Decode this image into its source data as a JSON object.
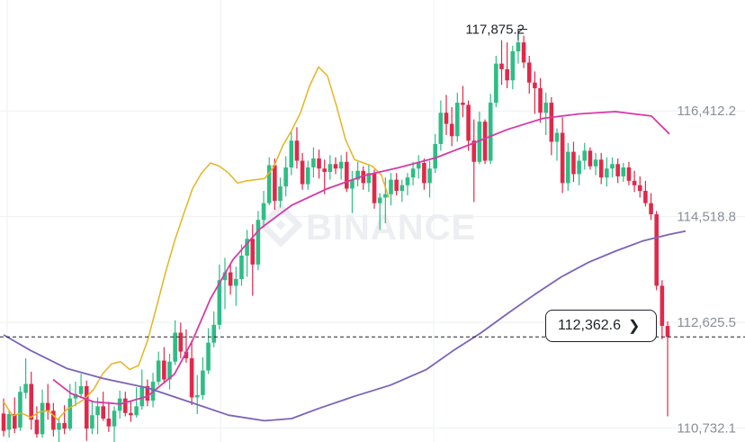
{
  "chart_data": {
    "type": "candlestick",
    "watermark": "BINANCE",
    "y_axis_labels": [
      "116,412.2",
      "114,518.8",
      "112,625.5",
      "110,732.1"
    ],
    "y_axis_values": [
      116412.2,
      114518.8,
      112625.5,
      110732.1
    ],
    "ylim": [
      110480,
      118400
    ],
    "grid": true,
    "high_marker": {
      "label": "117,875.2",
      "value": 117875.2
    },
    "current_price": {
      "label": "112,362.6",
      "value": 112362.6
    },
    "colors": {
      "up": "#2ebd85",
      "down": "#e0294a",
      "ma_short": "#e6b422",
      "ma_mid": "#d63aa6",
      "ma_long": "#7b63b8"
    },
    "candles": [
      [
        110990,
        111260,
        110580,
        110680
      ],
      [
        110700,
        111060,
        110560,
        110980
      ],
      [
        110980,
        111280,
        110640,
        110720
      ],
      [
        110740,
        111480,
        110680,
        111380
      ],
      [
        111360,
        111980,
        111260,
        111520
      ],
      [
        111520,
        111740,
        110700,
        110880
      ],
      [
        110880,
        111120,
        110560,
        110620
      ],
      [
        110620,
        111420,
        110560,
        111180
      ],
      [
        111180,
        111520,
        110880,
        111040
      ],
      [
        111040,
        111180,
        110580,
        110700
      ],
      [
        110700,
        110920,
        110420,
        110820
      ],
      [
        110820,
        111140,
        110620,
        110720
      ],
      [
        110720,
        111520,
        110680,
        111260
      ],
      [
        111260,
        111560,
        111120,
        111340
      ],
      [
        111340,
        111700,
        111260,
        111480
      ],
      [
        111480,
        111580,
        110500,
        110720
      ],
      [
        110720,
        111220,
        110620,
        110960
      ],
      [
        110960,
        111280,
        110620,
        111120
      ],
      [
        111120,
        111380,
        110860,
        110900
      ],
      [
        110900,
        111200,
        110660,
        110760
      ],
      [
        110760,
        111120,
        110480,
        111040
      ],
      [
        111040,
        111400,
        110900,
        111260
      ],
      [
        111260,
        111380,
        110940,
        111000
      ],
      [
        111000,
        111220,
        110840,
        110960
      ],
      [
        110960,
        111460,
        110920,
        111120
      ],
      [
        111120,
        111780,
        111060,
        111480
      ],
      [
        111480,
        111600,
        111120,
        111220
      ],
      [
        111220,
        111720,
        111100,
        111560
      ],
      [
        111560,
        112100,
        111500,
        111940
      ],
      [
        111940,
        112180,
        111520,
        111600
      ],
      [
        111600,
        112060,
        111420,
        111920
      ],
      [
        111920,
        112660,
        111860,
        112440
      ],
      [
        112440,
        112620,
        111980,
        112100
      ],
      [
        112100,
        112500,
        111900,
        111980
      ],
      [
        111980,
        112300,
        111140,
        111280
      ],
      [
        111280,
        111680,
        110980,
        111320
      ],
      [
        111320,
        112000,
        111240,
        111760
      ],
      [
        111760,
        112520,
        111700,
        112260
      ],
      [
        112260,
        112820,
        112180,
        112580
      ],
      [
        112580,
        113660,
        112500,
        113380
      ],
      [
        113380,
        113780,
        112860,
        113520
      ],
      [
        113520,
        113660,
        113120,
        113280
      ],
      [
        113280,
        113620,
        112920,
        113400
      ],
      [
        113400,
        114020,
        113280,
        113820
      ],
      [
        113820,
        114280,
        113440,
        114120
      ],
      [
        114120,
        114380,
        113100,
        113660
      ],
      [
        113660,
        114620,
        113560,
        114460
      ],
      [
        114460,
        114980,
        114320,
        114760
      ],
      [
        114760,
        115580,
        114720,
        115440
      ],
      [
        115440,
        115560,
        114640,
        114800
      ],
      [
        114800,
        115220,
        114680,
        115060
      ],
      [
        115060,
        115600,
        114880,
        115400
      ],
      [
        115400,
        116040,
        115260,
        115880
      ],
      [
        115880,
        116120,
        115380,
        115520
      ],
      [
        115520,
        115660,
        115000,
        115100
      ],
      [
        115100,
        115520,
        115000,
        115400
      ],
      [
        115400,
        115760,
        115220,
        115560
      ],
      [
        115560,
        115720,
        115200,
        115380
      ],
      [
        115380,
        115540,
        114920,
        115320
      ],
      [
        115320,
        115620,
        115180,
        115460
      ],
      [
        115460,
        115580,
        115280,
        115380
      ],
      [
        115380,
        115620,
        115180,
        115500
      ],
      [
        115500,
        115680,
        114960,
        115020
      ],
      [
        115020,
        115340,
        114580,
        115180
      ],
      [
        115180,
        115500,
        115060,
        115340
      ],
      [
        115340,
        115420,
        115000,
        115120
      ],
      [
        115120,
        115460,
        114960,
        115300
      ],
      [
        115300,
        115360,
        114660,
        114760
      ],
      [
        114760,
        114940,
        114280,
        114860
      ],
      [
        114860,
        115220,
        114400,
        114920
      ],
      [
        114920,
        115300,
        114720,
        115180
      ],
      [
        115180,
        115300,
        114900,
        114980
      ],
      [
        114980,
        115180,
        114780,
        115080
      ],
      [
        115080,
        115300,
        114900,
        115220
      ],
      [
        115220,
        115500,
        115080,
        115380
      ],
      [
        115380,
        115620,
        115200,
        115480
      ],
      [
        115480,
        115560,
        115000,
        115120
      ],
      [
        115120,
        115520,
        114860,
        115380
      ],
      [
        115380,
        116000,
        115300,
        115820
      ],
      [
        115820,
        116600,
        115700,
        116380
      ],
      [
        116380,
        116700,
        115980,
        116180
      ],
      [
        116180,
        116480,
        115780,
        115960
      ],
      [
        115960,
        116740,
        115860,
        116560
      ],
      [
        116560,
        116860,
        116300,
        116520
      ],
      [
        116520,
        116600,
        115700,
        115880
      ],
      [
        115880,
        116260,
        114780,
        115500
      ],
      [
        115500,
        116400,
        115460,
        116220
      ],
      [
        116220,
        116260,
        115460,
        115520
      ],
      [
        115520,
        116720,
        115460,
        116560
      ],
      [
        116560,
        117400,
        116480,
        117260
      ],
      [
        117260,
        117680,
        116880,
        117160
      ],
      [
        117160,
        117640,
        116820,
        116960
      ],
      [
        116960,
        117580,
        116800,
        117480
      ],
      [
        117480,
        117875,
        117260,
        117640
      ],
      [
        117640,
        117760,
        117180,
        117280
      ],
      [
        117280,
        117400,
        116720,
        116920
      ],
      [
        116920,
        117120,
        116360,
        116820
      ],
      [
        116820,
        117000,
        116200,
        116380
      ],
      [
        116380,
        116740,
        115980,
        116560
      ],
      [
        116560,
        116660,
        115620,
        115860
      ],
      [
        115860,
        116100,
        115520,
        116020
      ],
      [
        116020,
        116300,
        114940,
        115120
      ],
      [
        115120,
        115840,
        114980,
        115680
      ],
      [
        115680,
        115860,
        115140,
        115280
      ],
      [
        115280,
        115620,
        115080,
        115520
      ],
      [
        115520,
        115840,
        115360,
        115700
      ],
      [
        115700,
        115760,
        115360,
        115420
      ],
      [
        115420,
        115660,
        115260,
        115540
      ],
      [
        115540,
        115660,
        115100,
        115220
      ],
      [
        115220,
        115580,
        115060,
        115380
      ],
      [
        115380,
        115580,
        115220,
        115460
      ],
      [
        115460,
        115560,
        115120,
        115240
      ],
      [
        115240,
        115480,
        115140,
        115400
      ],
      [
        115400,
        115500,
        115080,
        115160
      ],
      [
        115160,
        115340,
        114960,
        115080
      ],
      [
        115080,
        115240,
        114860,
        114980
      ],
      [
        114980,
        115160,
        114700,
        114760
      ],
      [
        114760,
        114940,
        114460,
        114560
      ],
      [
        114560,
        114620,
        113200,
        113280
      ],
      [
        113280,
        113380,
        112320,
        112560
      ],
      [
        112560,
        112640,
        110940,
        112362.6
      ]
    ],
    "ma_short": [
      [
        111200,
        0
      ],
      [
        110950,
        10
      ],
      [
        111000,
        20
      ],
      [
        110920,
        30
      ],
      [
        111020,
        40
      ],
      [
        111040,
        50
      ],
      [
        110880,
        60
      ],
      [
        111060,
        70
      ],
      [
        111150,
        80
      ],
      [
        111250,
        90
      ],
      [
        111420,
        100
      ],
      [
        111700,
        110
      ],
      [
        111880,
        120
      ],
      [
        111920,
        130
      ],
      [
        111780,
        140
      ],
      [
        111850,
        150
      ],
      [
        112300,
        160
      ],
      [
        112900,
        170
      ],
      [
        113520,
        180
      ],
      [
        114080,
        190
      ],
      [
        114560,
        200
      ],
      [
        115020,
        210
      ],
      [
        115300,
        220
      ],
      [
        115480,
        230
      ],
      [
        115420,
        240
      ],
      [
        115300,
        250
      ],
      [
        115120,
        260
      ],
      [
        115160,
        270
      ],
      [
        115180,
        280
      ],
      [
        115200,
        290
      ],
      [
        115400,
        300
      ],
      [
        115780,
        310
      ],
      [
        116060,
        320
      ],
      [
        116380,
        330
      ],
      [
        116860,
        340
      ],
      [
        117200,
        350
      ],
      [
        117040,
        360
      ],
      [
        116500,
        370
      ],
      [
        115900,
        380
      ],
      [
        115540,
        390
      ],
      [
        115480,
        400
      ],
      [
        115420,
        410
      ],
      [
        115260,
        420
      ],
      [
        114860,
        428
      ]
    ],
    "ma_mid": [
      [
        111600,
        55
      ],
      [
        111350,
        75
      ],
      [
        111200,
        100
      ],
      [
        111160,
        130
      ],
      [
        111300,
        160
      ],
      [
        111700,
        190
      ],
      [
        112300,
        210
      ],
      [
        113050,
        230
      ],
      [
        113750,
        255
      ],
      [
        114300,
        285
      ],
      [
        114720,
        320
      ],
      [
        115020,
        360
      ],
      [
        115250,
        400
      ],
      [
        115400,
        440
      ],
      [
        115570,
        480
      ],
      [
        115820,
        520
      ],
      [
        116080,
        560
      ],
      [
        116280,
        600
      ],
      [
        116360,
        640
      ],
      [
        116400,
        680
      ],
      [
        116320,
        720
      ],
      [
        116000,
        740
      ]
    ],
    "ma_long": [
      [
        112400,
        0
      ],
      [
        112120,
        30
      ],
      [
        111800,
        70
      ],
      [
        111620,
        110
      ],
      [
        111450,
        160
      ],
      [
        111180,
        210
      ],
      [
        110960,
        250
      ],
      [
        110860,
        290
      ],
      [
        110900,
        320
      ],
      [
        111080,
        350
      ],
      [
        111300,
        390
      ],
      [
        111500,
        430
      ],
      [
        111780,
        470
      ],
      [
        112120,
        500
      ],
      [
        112430,
        530
      ],
      [
        112780,
        560
      ],
      [
        113120,
        590
      ],
      [
        113440,
        620
      ],
      [
        113700,
        650
      ],
      [
        113900,
        680
      ],
      [
        114080,
        710
      ],
      [
        114200,
        740
      ],
      [
        114260,
        758
      ]
    ]
  }
}
